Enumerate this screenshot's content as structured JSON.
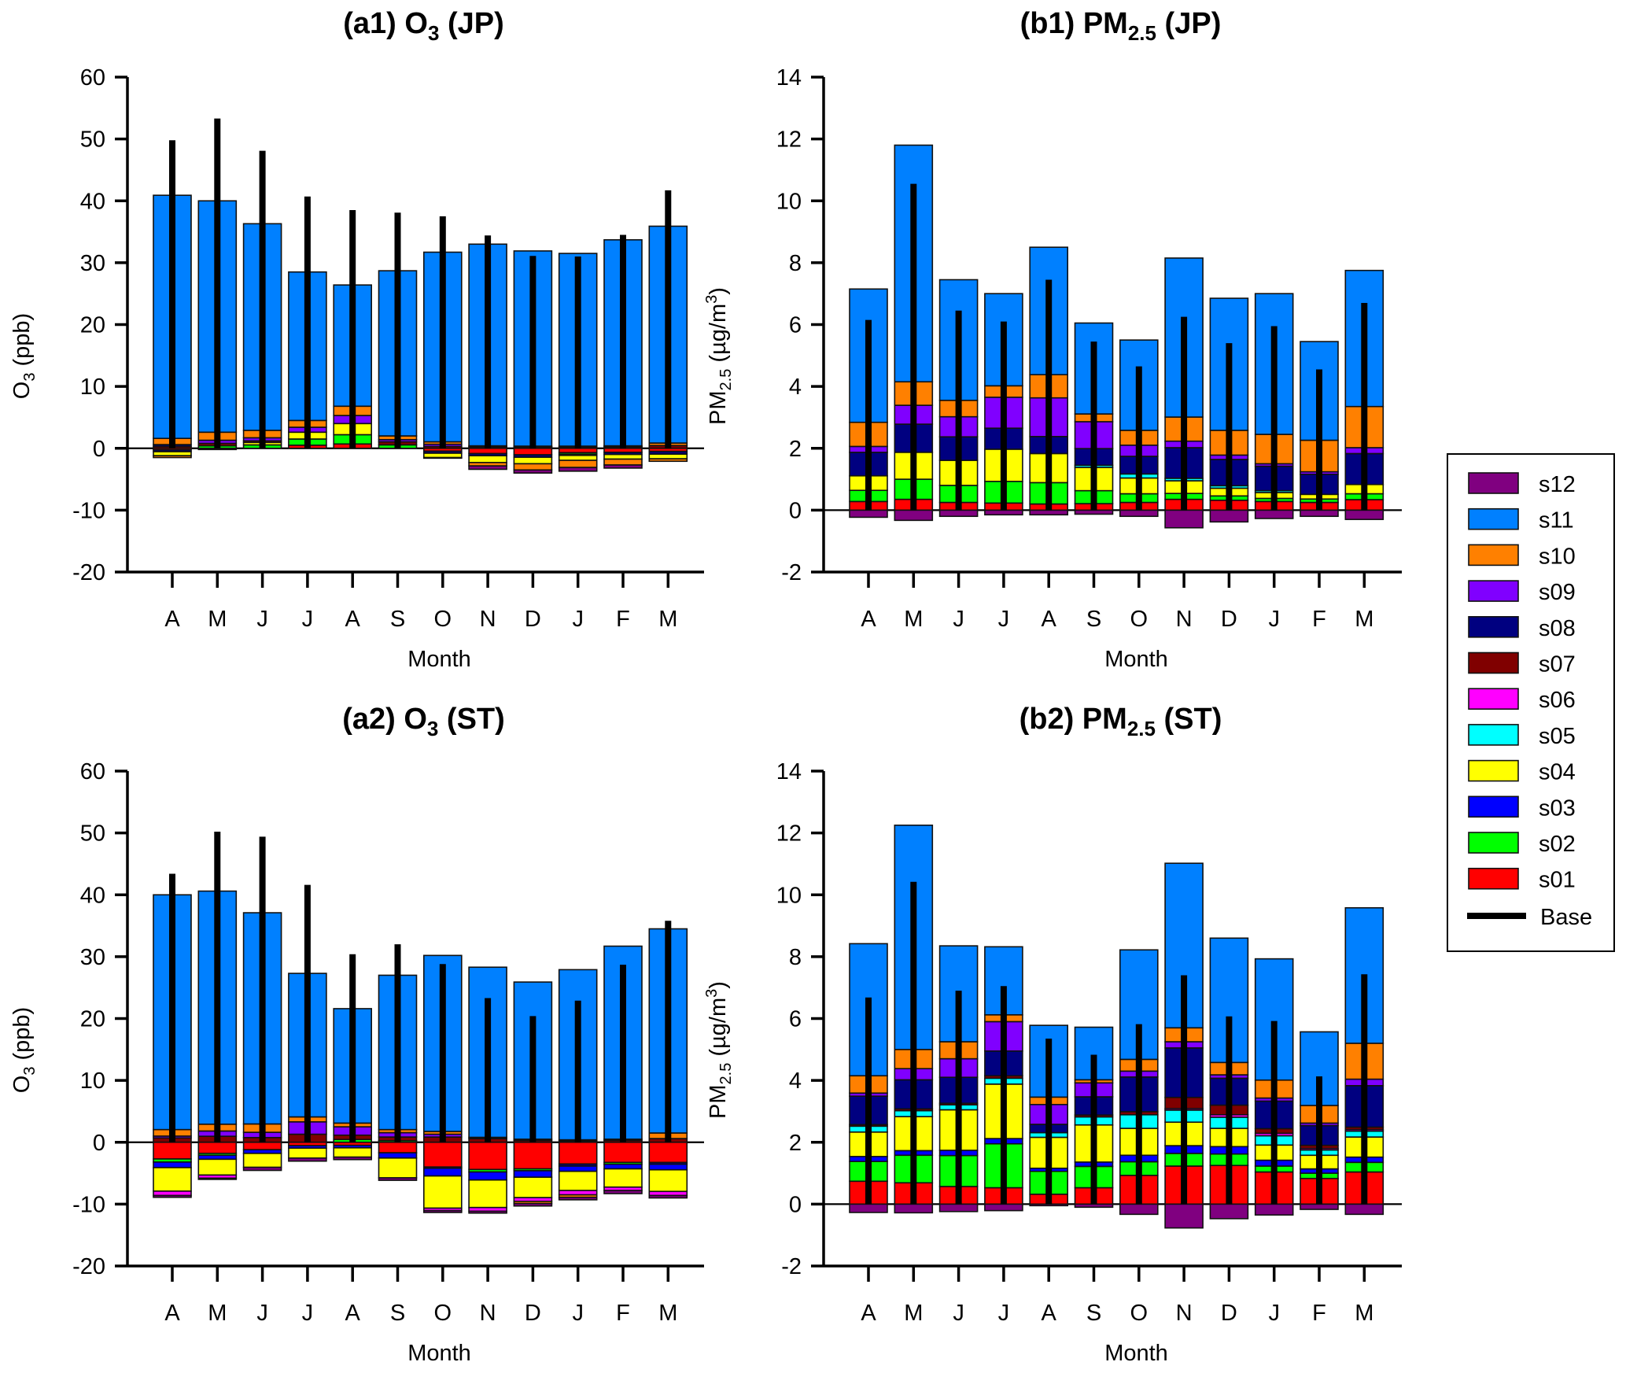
{
  "chart_data": {
    "type": "bar",
    "stacked": true,
    "sources": [
      "s01",
      "s02",
      "s03",
      "s04",
      "s05",
      "s06",
      "s07",
      "s08",
      "s09",
      "s10",
      "s11",
      "s12"
    ],
    "colors": {
      "s01": "#FF0000",
      "s02": "#00FF00",
      "s03": "#0000FF",
      "s04": "#FFFF00",
      "s05": "#00FFFF",
      "s06": "#FF00FF",
      "s07": "#800000",
      "s08": "#000080",
      "s09": "#8000FF",
      "s10": "#FF8000",
      "s11": "#0080FF",
      "s12": "#800080",
      "base": "#000000"
    },
    "categories": [
      "A",
      "M",
      "J",
      "J",
      "A",
      "S",
      "O",
      "N",
      "D",
      "J",
      "F",
      "M"
    ],
    "legend": {
      "placement": "right",
      "entries": [
        "s12",
        "s11",
        "s10",
        "s09",
        "s08",
        "s07",
        "s06",
        "s05",
        "s04",
        "s03",
        "s02",
        "s01",
        "Base"
      ]
    },
    "panels": [
      {
        "id": "a1",
        "title_prefix": "(a1) O",
        "title_sub": "3",
        "title_suffix": " (JP)",
        "ylabel_main": "O",
        "ylabel_sub": "3",
        "ylabel_suffix": " (ppb)",
        "xlabel": "Month",
        "ylim": [
          -20,
          60
        ],
        "yticks": [
          -20,
          -10,
          0,
          10,
          20,
          30,
          40,
          50,
          60
        ],
        "base": [
          49.8,
          53.3,
          48.1,
          40.7,
          38.5,
          38.1,
          37.5,
          34.4,
          31.1,
          31.0,
          34.5,
          41.7
        ],
        "positive": {
          "s01": [
            0,
            0,
            0,
            0.5,
            0.7,
            0,
            0,
            0,
            0,
            0,
            0,
            0
          ],
          "s02": [
            0,
            0.4,
            0.55,
            1.0,
            1.5,
            0.55,
            0,
            0,
            0,
            0,
            0,
            0
          ],
          "s04": [
            0,
            0,
            0.4,
            1.1,
            1.8,
            0,
            0,
            0,
            0,
            0,
            0,
            0
          ],
          "s07": [
            0.3,
            0.4,
            0.25,
            0,
            0,
            0.5,
            0.3,
            0.2,
            0.15,
            0.15,
            0.2,
            0.45
          ],
          "s08": [
            0.3,
            0,
            0,
            0,
            0,
            0,
            0,
            0.1,
            0.1,
            0.1,
            0.1,
            0
          ],
          "s09": [
            0,
            0.5,
            0.5,
            0.8,
            1.3,
            0.35,
            0.35,
            0,
            0,
            0,
            0,
            0
          ],
          "s10": [
            1.0,
            1.3,
            1.2,
            1.1,
            1.5,
            0.6,
            0.4,
            0.1,
            0.1,
            0.1,
            0.1,
            0.4
          ],
          "s11": [
            39.3,
            37.4,
            33.4,
            24.0,
            19.6,
            26.7,
            30.65,
            32.6,
            31.55,
            31.15,
            33.3,
            35.05
          ]
        },
        "negative": {
          "s01": [
            -0.25,
            0,
            0,
            0,
            0,
            0,
            -0.45,
            -0.85,
            -1.05,
            -0.7,
            -0.65,
            -0.5
          ],
          "s02": [
            0,
            0,
            0,
            0,
            0,
            0,
            0,
            0,
            0,
            -0.25,
            0,
            0
          ],
          "s08": [
            -0.3,
            -0.2,
            0,
            0,
            0,
            0,
            -0.35,
            -0.35,
            -0.4,
            -0.2,
            -0.35,
            -0.45
          ],
          "s04": [
            -0.65,
            0,
            0,
            0,
            0,
            0,
            -0.7,
            -1.1,
            -1.05,
            -0.8,
            -0.75,
            -0.75
          ],
          "s10": [
            -0.3,
            0,
            0,
            0,
            0,
            0,
            -0.1,
            -0.55,
            -1.0,
            -1.15,
            -0.95,
            -0.4
          ],
          "s12": [
            0,
            0,
            0,
            0,
            0,
            0,
            0,
            -0.55,
            -0.5,
            -0.6,
            -0.5,
            0
          ]
        }
      },
      {
        "id": "b1",
        "title_prefix": "(b1) PM",
        "title_sub": "2.5",
        "title_suffix": " (JP)",
        "ylabel_main": "PM",
        "ylabel_sub": "2.5",
        "ylabel_suffix": " (µg/m",
        "ylabel_sup": "3",
        "ylabel_end": ")",
        "xlabel": "Month",
        "ylim": [
          -2,
          14
        ],
        "yticks": [
          -2,
          0,
          2,
          4,
          6,
          8,
          10,
          12,
          14
        ],
        "base": [
          6.15,
          10.55,
          6.45,
          6.1,
          7.45,
          5.45,
          4.65,
          6.25,
          5.4,
          5.95,
          4.55,
          6.7
        ],
        "positive": {
          "s01": [
            0.28,
            0.35,
            0.25,
            0.23,
            0.2,
            0.21,
            0.25,
            0.35,
            0.32,
            0.28,
            0.25,
            0.34
          ],
          "s02": [
            0.36,
            0.65,
            0.55,
            0.7,
            0.69,
            0.42,
            0.28,
            0.19,
            0.14,
            0.1,
            0.11,
            0.19
          ],
          "s04": [
            0.47,
            0.87,
            0.81,
            1.04,
            0.94,
            0.75,
            0.51,
            0.41,
            0.25,
            0.19,
            0.15,
            0.3
          ],
          "s05": [
            0,
            0,
            0,
            0,
            0,
            0.07,
            0.13,
            0.08,
            0.08,
            0.06,
            0,
            0
          ],
          "s08": [
            0.76,
            0.91,
            0.76,
            0.68,
            0.55,
            0.54,
            0.57,
            0.99,
            0.85,
            0.79,
            0.65,
            1.0
          ],
          "s09": [
            0.19,
            0.61,
            0.65,
            1.0,
            1.25,
            0.87,
            0.36,
            0.21,
            0.14,
            0.08,
            0.08,
            0.19
          ],
          "s10": [
            0.78,
            0.76,
            0.53,
            0.37,
            0.75,
            0.25,
            0.48,
            0.78,
            0.8,
            0.95,
            1.02,
            1.33
          ],
          "s11": [
            4.31,
            7.65,
            3.9,
            2.98,
            4.12,
            2.94,
            2.92,
            5.14,
            4.27,
            4.55,
            3.19,
            4.4
          ]
        },
        "negative": {
          "s12": [
            -0.23,
            -0.33,
            -0.2,
            -0.15,
            -0.15,
            -0.13,
            -0.2,
            -0.57,
            -0.38,
            -0.27,
            -0.2,
            -0.3
          ]
        }
      },
      {
        "id": "a2",
        "title_prefix": "(a2) O",
        "title_sub": "3",
        "title_suffix": " (ST)",
        "ylabel_main": "O",
        "ylabel_sub": "3",
        "ylabel_suffix": " (ppb)",
        "xlabel": "Month",
        "ylim": [
          -20,
          60
        ],
        "yticks": [
          -20,
          -10,
          0,
          10,
          20,
          30,
          40,
          50,
          60
        ],
        "base": [
          43.4,
          50.2,
          49.4,
          41.6,
          30.4,
          32.0,
          28.8,
          23.3,
          20.4,
          22.9,
          28.7,
          35.8
        ],
        "positive": {
          "s02": [
            0,
            0,
            0,
            0,
            0.45,
            0.25,
            0,
            0,
            0,
            0,
            0,
            0
          ],
          "s07": [
            0.7,
            0.97,
            0.76,
            1.3,
            0.7,
            0.6,
            0.85,
            0.6,
            0.3,
            0.2,
            0.3,
            0.6
          ],
          "s09": [
            0.3,
            0.85,
            0.85,
            2.0,
            1.35,
            0.7,
            0.45,
            0,
            0,
            0,
            0,
            0
          ],
          "s10": [
            1.05,
            1.1,
            1.35,
            0.8,
            0.6,
            0.5,
            0.45,
            0.2,
            0.2,
            0.2,
            0.2,
            0.9
          ],
          "s11": [
            37.95,
            37.68,
            34.14,
            23.2,
            18.5,
            24.95,
            28.45,
            27.5,
            25.4,
            27.5,
            31.2,
            33.0
          ]
        },
        "negative": {
          "s01": [
            -2.7,
            -1.8,
            -1.2,
            -0.55,
            -0.5,
            -1.7,
            -4.0,
            -4.4,
            -4.3,
            -3.5,
            -3.25,
            -3.25
          ],
          "s02": [
            -0.5,
            -0.3,
            0,
            0,
            0,
            0,
            -0.2,
            -0.4,
            -0.3,
            0,
            -0.3,
            0
          ],
          "s08": [
            0,
            0,
            0,
            0,
            0,
            0,
            0,
            0,
            0,
            -0.35,
            0,
            -0.3
          ],
          "s03": [
            -0.9,
            -0.65,
            -0.6,
            -0.4,
            -0.4,
            -0.85,
            -1.25,
            -1.3,
            -1.05,
            -0.85,
            -0.75,
            -0.9
          ],
          "s04": [
            -3.8,
            -2.55,
            -2.25,
            -1.6,
            -1.5,
            -3.2,
            -5.2,
            -4.45,
            -3.3,
            -3.1,
            -2.95,
            -3.5
          ],
          "s06": [
            -0.7,
            -0.5,
            0,
            0,
            0,
            0,
            -0.4,
            -0.6,
            -0.6,
            -0.7,
            -0.55,
            -0.65
          ],
          "s10": [
            0,
            0,
            0,
            0,
            0,
            0,
            0,
            0,
            -0.35,
            -0.4,
            0,
            0
          ],
          "s12": [
            -0.3,
            -0.2,
            -0.5,
            -0.5,
            -0.4,
            -0.4,
            -0.3,
            -0.3,
            -0.4,
            -0.4,
            -0.5,
            -0.4
          ]
        }
      },
      {
        "id": "b2",
        "title_prefix": "(b2) PM",
        "title_sub": "2.5",
        "title_suffix": " (ST)",
        "ylabel_main": "PM",
        "ylabel_sub": "2.5",
        "ylabel_suffix": " (µg/m",
        "ylabel_sup": "3",
        "ylabel_end": ")",
        "xlabel": "Month",
        "ylim": [
          -2,
          14
        ],
        "yticks": [
          -2,
          0,
          2,
          4,
          6,
          8,
          10,
          12,
          14
        ],
        "base": [
          6.68,
          10.42,
          6.9,
          7.05,
          5.35,
          4.83,
          5.82,
          7.4,
          6.07,
          5.92,
          4.13,
          7.43
        ],
        "positive": {
          "s01": [
            0.74,
            0.69,
            0.57,
            0.53,
            0.32,
            0.53,
            0.93,
            1.23,
            1.25,
            1.04,
            0.83,
            1.04
          ],
          "s02": [
            0.64,
            0.89,
            1.0,
            1.42,
            0.74,
            0.69,
            0.44,
            0.41,
            0.37,
            0.19,
            0.17,
            0.31
          ],
          "s03": [
            0.16,
            0.15,
            0.17,
            0.17,
            0.1,
            0.14,
            0.21,
            0.25,
            0.24,
            0.19,
            0.14,
            0.17
          ],
          "s04": [
            0.79,
            1.1,
            1.31,
            1.76,
            1.0,
            1.2,
            0.87,
            0.76,
            0.59,
            0.49,
            0.44,
            0.65
          ],
          "s05": [
            0.19,
            0.19,
            0.16,
            0.19,
            0.15,
            0.26,
            0.44,
            0.39,
            0.36,
            0.3,
            0.17,
            0.19
          ],
          "s06": [
            0,
            0,
            0,
            0,
            0,
            0,
            0,
            0.05,
            0.08,
            0.08,
            0.05,
            0.05
          ],
          "s07": [
            0.05,
            0.06,
            0.05,
            0.08,
            0,
            0.06,
            0.1,
            0.36,
            0.31,
            0.15,
            0.1,
            0.08
          ],
          "s08": [
            0.92,
            0.94,
            0.84,
            0.8,
            0.27,
            0.59,
            1.12,
            1.6,
            0.87,
            0.89,
            0.64,
            1.34
          ],
          "s09": [
            0.1,
            0.36,
            0.6,
            0.95,
            0.64,
            0.45,
            0.19,
            0.2,
            0.11,
            0.1,
            0.08,
            0.21
          ],
          "s10": [
            0.56,
            0.62,
            0.55,
            0.22,
            0.24,
            0.1,
            0.38,
            0.45,
            0.4,
            0.58,
            0.57,
            1.16
          ],
          "s11": [
            4.27,
            7.25,
            3.1,
            2.2,
            2.32,
            1.7,
            3.54,
            5.32,
            4.02,
            3.92,
            2.38,
            4.38
          ]
        },
        "negative": {
          "s12": [
            -0.27,
            -0.28,
            -0.24,
            -0.21,
            -0.05,
            -0.1,
            -0.33,
            -0.77,
            -0.47,
            -0.35,
            -0.17,
            -0.33
          ]
        }
      }
    ]
  }
}
